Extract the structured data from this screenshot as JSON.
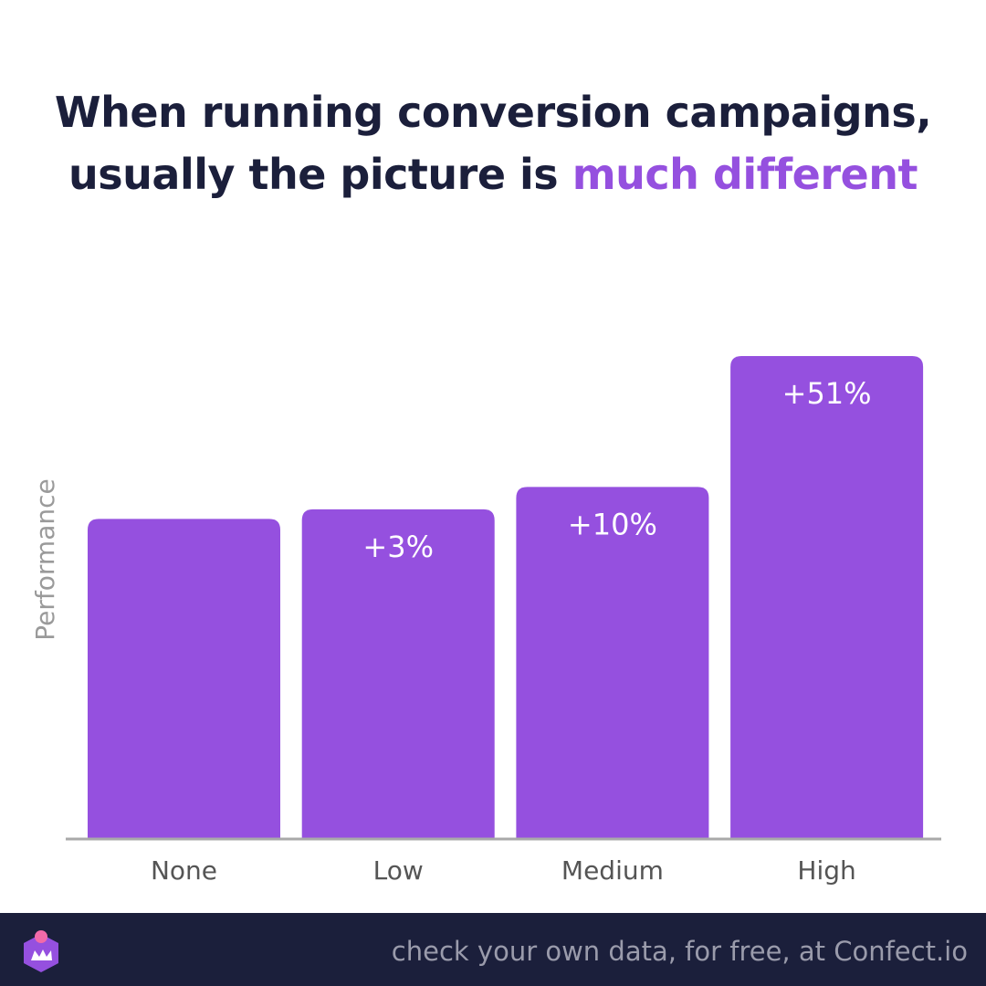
{
  "header": {
    "title_line1": "When running conversion campaigns,",
    "title_line2_prefix": "usually the picture is ",
    "title_line2_accent": "much different"
  },
  "colors": {
    "bar": "#9550df",
    "title": "#1b1f3b",
    "accent": "#9550df",
    "axis_label": "#9a9a9a",
    "tick_label": "#555555",
    "baseline": "#a9a9a9",
    "footer_bg": "#1b1f3b",
    "footer_text": "#9a9bab",
    "logo_body": "#9550df",
    "logo_dot": "#f26aa9"
  },
  "chart_data": {
    "type": "bar",
    "categories": [
      "None",
      "Low",
      "Medium",
      "High"
    ],
    "values": [
      100,
      103,
      110,
      151
    ],
    "data_labels": [
      "",
      "+3%",
      "+10%",
      "+51%"
    ],
    "ylabel": "Performance",
    "xlabel": "",
    "ylim": [
      0,
      160
    ],
    "grid": false,
    "legend": "none"
  },
  "footer": {
    "text": "check your own data, for free, at Confect.io",
    "logo_icon": "confect-crown-icon"
  }
}
